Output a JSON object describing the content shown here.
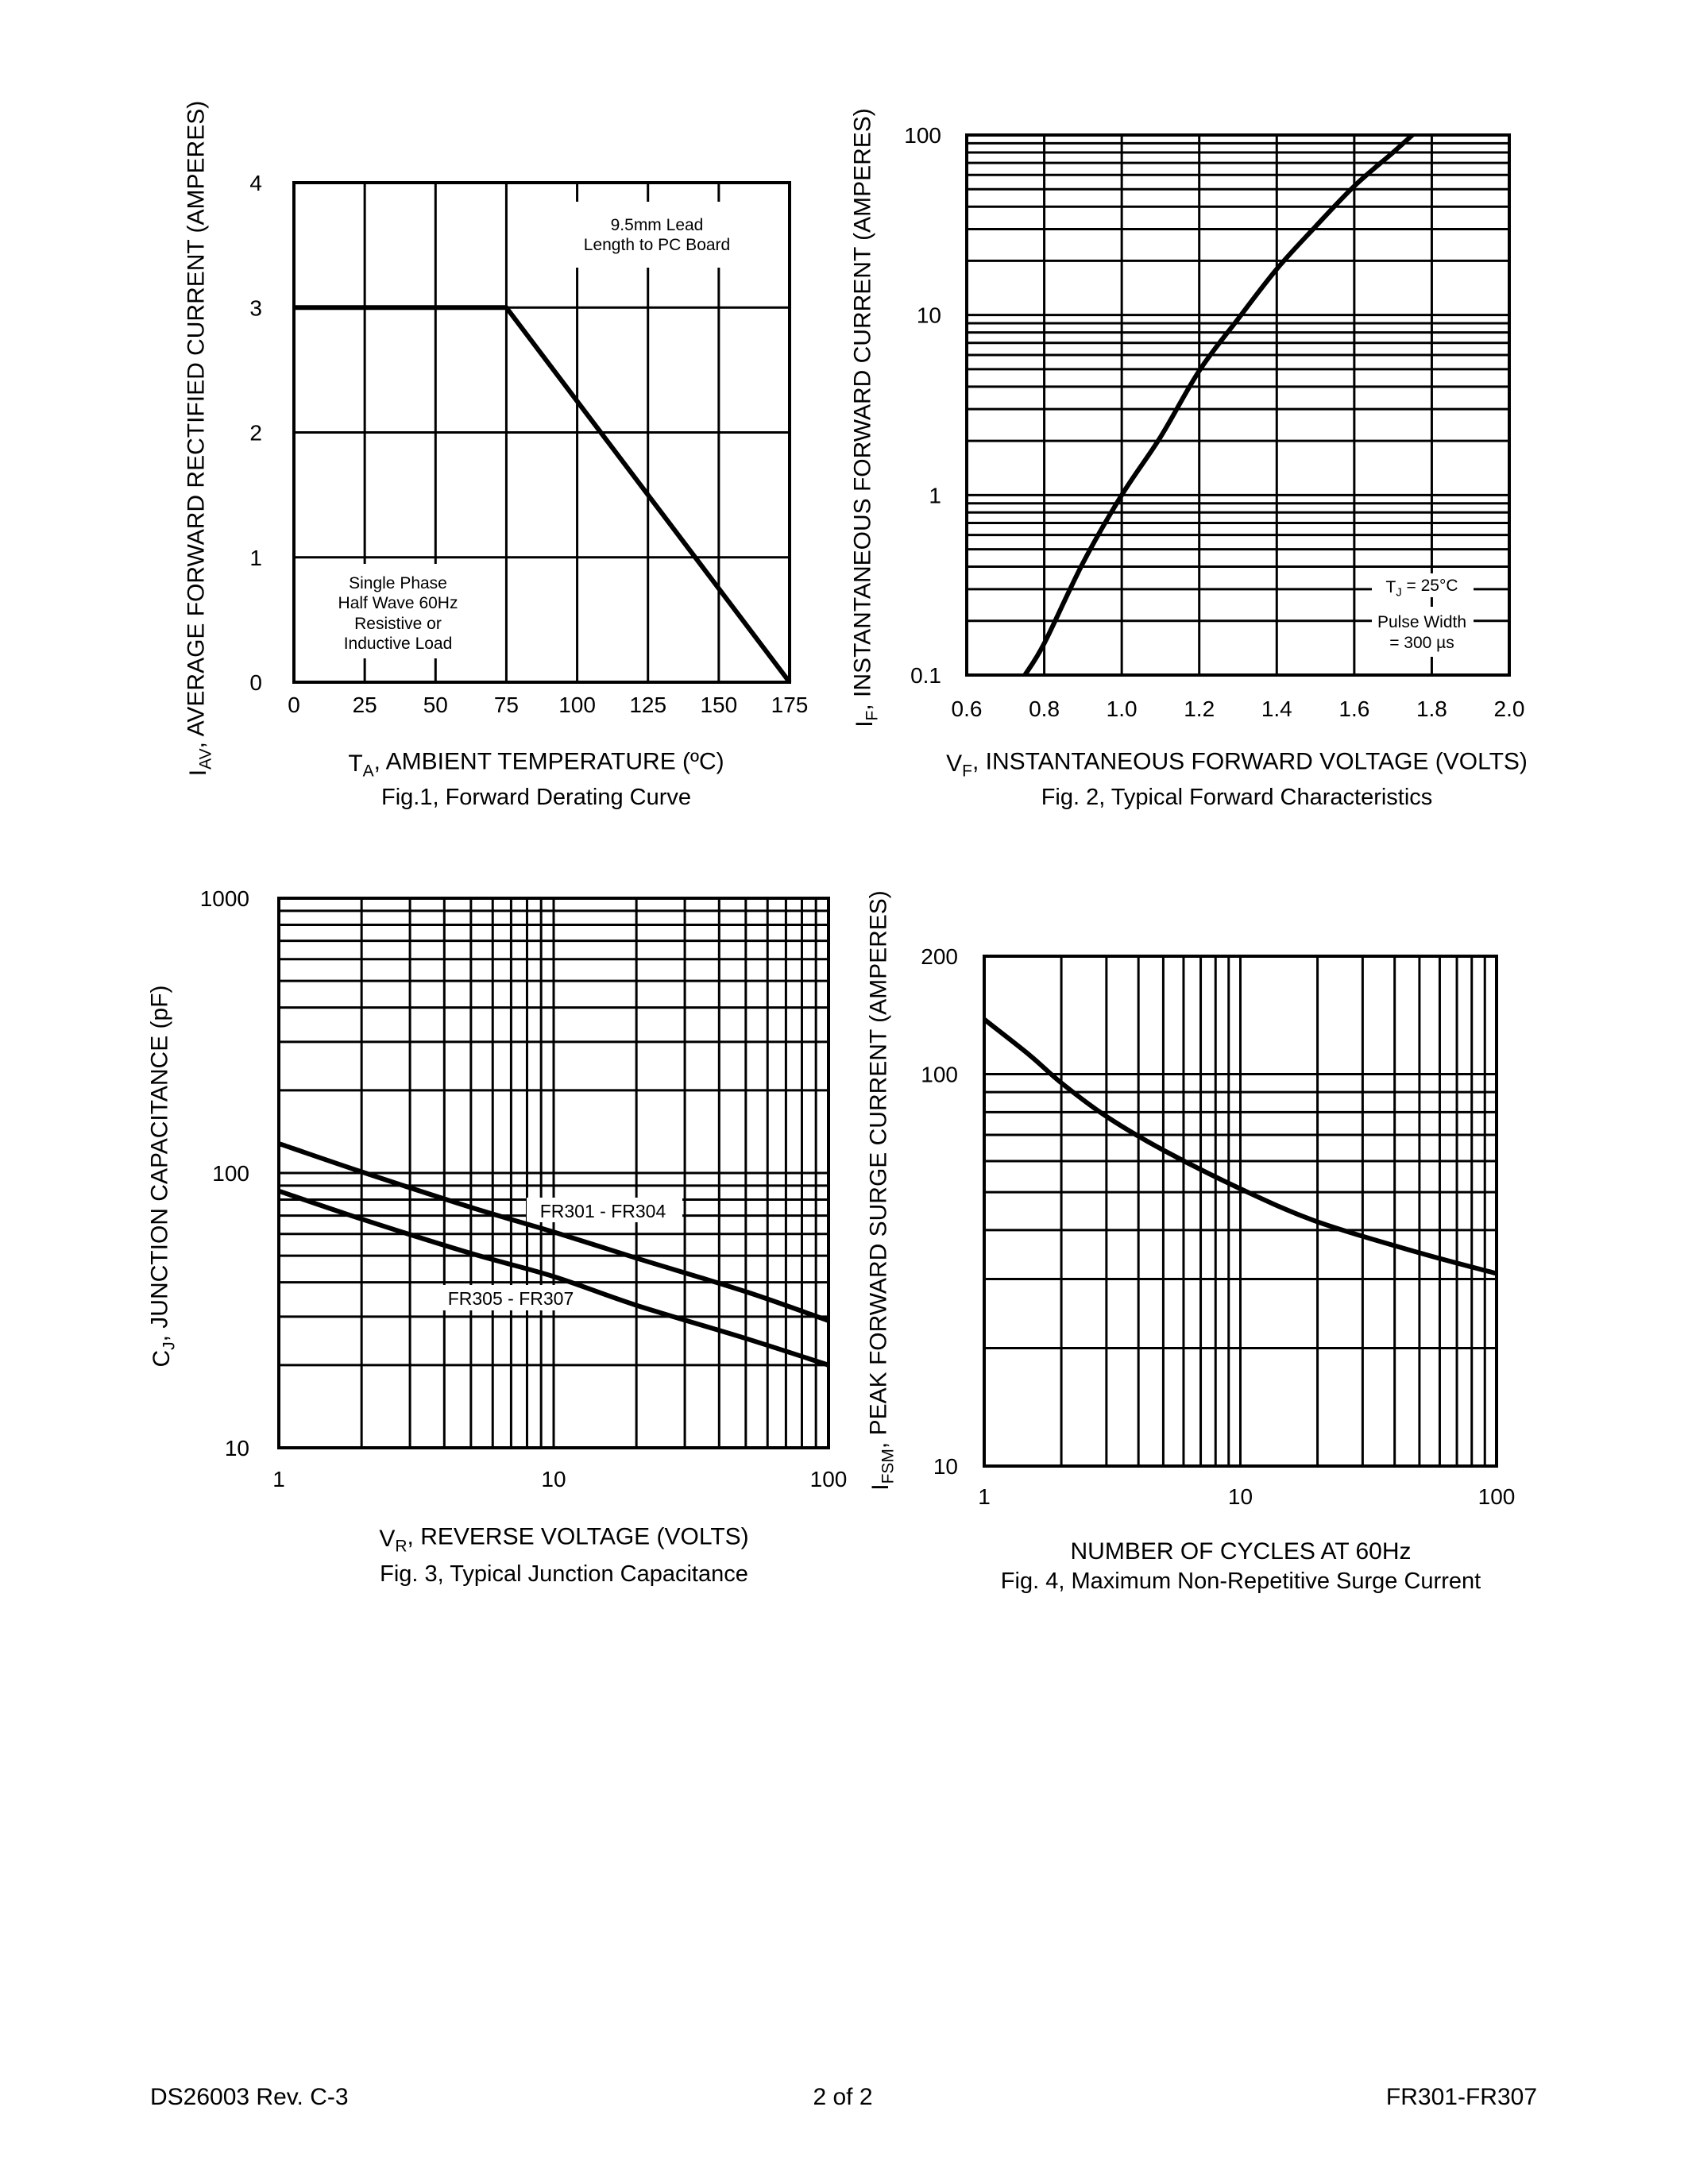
{
  "chart_data": [
    {
      "type": "line",
      "title": "Fig.1,  Forward Derating Curve",
      "xlabel": {
        "pre": "T",
        "sub": "A",
        "post": ", AMBIENT TEMPERATURE (ºC)"
      },
      "ylabel": {
        "pre": "I",
        "sub": "AV",
        "post": ", AVERAGE FORWARD RECTIFIED CURRENT (AMPERES)"
      },
      "x_scale": "linear",
      "y_scale": "linear",
      "xlim": [
        0,
        175
      ],
      "ylim": [
        0,
        4
      ],
      "x_ticks": [
        "0",
        "25",
        "50",
        "75",
        "100",
        "125",
        "150",
        "175"
      ],
      "y_ticks": [
        "0",
        "1",
        "2",
        "3",
        "4"
      ],
      "grid": true,
      "series": [
        {
          "points": [
            [
              0,
              3
            ],
            [
              75,
              3
            ],
            [
              175,
              0
            ]
          ]
        }
      ],
      "annotations": [
        {
          "lines": [
            "9.5mm Lead",
            "Length to PC Board"
          ]
        },
        {
          "lines": [
            "Single Phase",
            "Half Wave 60Hz",
            "Resistive or",
            "Inductive Load"
          ]
        }
      ]
    },
    {
      "type": "line",
      "title": "Fig. 2,  Typical Forward Characteristics",
      "xlabel": {
        "pre": "V",
        "sub": "F",
        "post": ", INSTANTANEOUS FORWARD VOLTAGE (VOLTS)"
      },
      "ylabel": {
        "pre": "I",
        "sub": "F",
        "post": ", INSTANTANEOUS FORWARD CURRENT (AMPERES)"
      },
      "x_scale": "linear",
      "y_scale": "log",
      "xlim": [
        0.6,
        2.0
      ],
      "ylim": [
        0.1,
        100
      ],
      "x_ticks": [
        "0.6",
        "0.8",
        "1.0",
        "1.2",
        "1.4",
        "1.6",
        "1.8",
        "2.0"
      ],
      "y_ticks": [
        "0.1",
        "1",
        "10",
        "100"
      ],
      "grid": true,
      "series": [
        {
          "points": [
            [
              0.75,
              0.1
            ],
            [
              0.8,
              0.15
            ],
            [
              0.9,
              0.42
            ],
            [
              1.0,
              1.0
            ],
            [
              1.1,
              2.1
            ],
            [
              1.2,
              4.9
            ],
            [
              1.3,
              9.5
            ],
            [
              1.4,
              18
            ],
            [
              1.5,
              31
            ],
            [
              1.6,
              52
            ],
            [
              1.7,
              80
            ],
            [
              1.75,
              100
            ]
          ]
        }
      ],
      "annotations": [
        {
          "lines": [
            {
              "pre": "T",
              "sub": "J",
              "post": " = 25°C"
            }
          ]
        },
        {
          "lines": [
            "Pulse Width",
            "= 300 µs"
          ]
        }
      ]
    },
    {
      "type": "line",
      "title": "Fig. 3,  Typical Junction Capacitance",
      "xlabel": {
        "pre": "V",
        "sub": "R",
        "post": ", REVERSE VOLTAGE (VOLTS)"
      },
      "ylabel": {
        "pre": "C",
        "sub": "J",
        "post": ", JUNCTION CAPACITANCE (pF)"
      },
      "x_scale": "log",
      "y_scale": "log",
      "xlim": [
        1,
        100
      ],
      "ylim": [
        10,
        1000
      ],
      "x_ticks": [
        "1",
        "10",
        "100"
      ],
      "y_ticks": [
        "10",
        "100",
        "1000"
      ],
      "grid": true,
      "series": [
        {
          "name": "FR301 - FR304",
          "points": [
            [
              1,
              128
            ],
            [
              2,
              101
            ],
            [
              5,
              75
            ],
            [
              10,
              61
            ],
            [
              20,
              49
            ],
            [
              50,
              37
            ],
            [
              100,
              29
            ]
          ]
        },
        {
          "name": "FR305 - FR307",
          "points": [
            [
              1,
              86
            ],
            [
              2,
              68
            ],
            [
              5,
              51
            ],
            [
              10,
              42
            ],
            [
              20,
              33
            ],
            [
              50,
              25
            ],
            [
              100,
              20
            ]
          ]
        }
      ]
    },
    {
      "type": "line",
      "title": "Fig. 4,  Maximum Non-Repetitive Surge Current",
      "xlabel": {
        "pre": "NUMBER OF CYCLES AT 60Hz",
        "sub": "",
        "post": ""
      },
      "ylabel": {
        "pre": "I",
        "sub": "FSM",
        "post": ", PEAK FORWARD SURGE CURRENT (AMPERES)"
      },
      "x_scale": "log",
      "y_scale": "log",
      "xlim": [
        1,
        100
      ],
      "ylim": [
        10,
        200
      ],
      "x_ticks": [
        "1",
        "10",
        "100"
      ],
      "y_ticks": [
        "10",
        "100",
        "200"
      ],
      "grid": true,
      "series": [
        {
          "points": [
            [
              1,
              138
            ],
            [
              1.5,
              112
            ],
            [
              2,
              95
            ],
            [
              3,
              78
            ],
            [
              5,
              64
            ],
            [
              10,
              51
            ],
            [
              20,
              42
            ],
            [
              50,
              35
            ],
            [
              100,
              31
            ]
          ]
        }
      ]
    }
  ],
  "footer": {
    "doc_number": "DS26003 Rev. C-3",
    "page": "2 of 2",
    "part_range": "FR301-FR307"
  }
}
